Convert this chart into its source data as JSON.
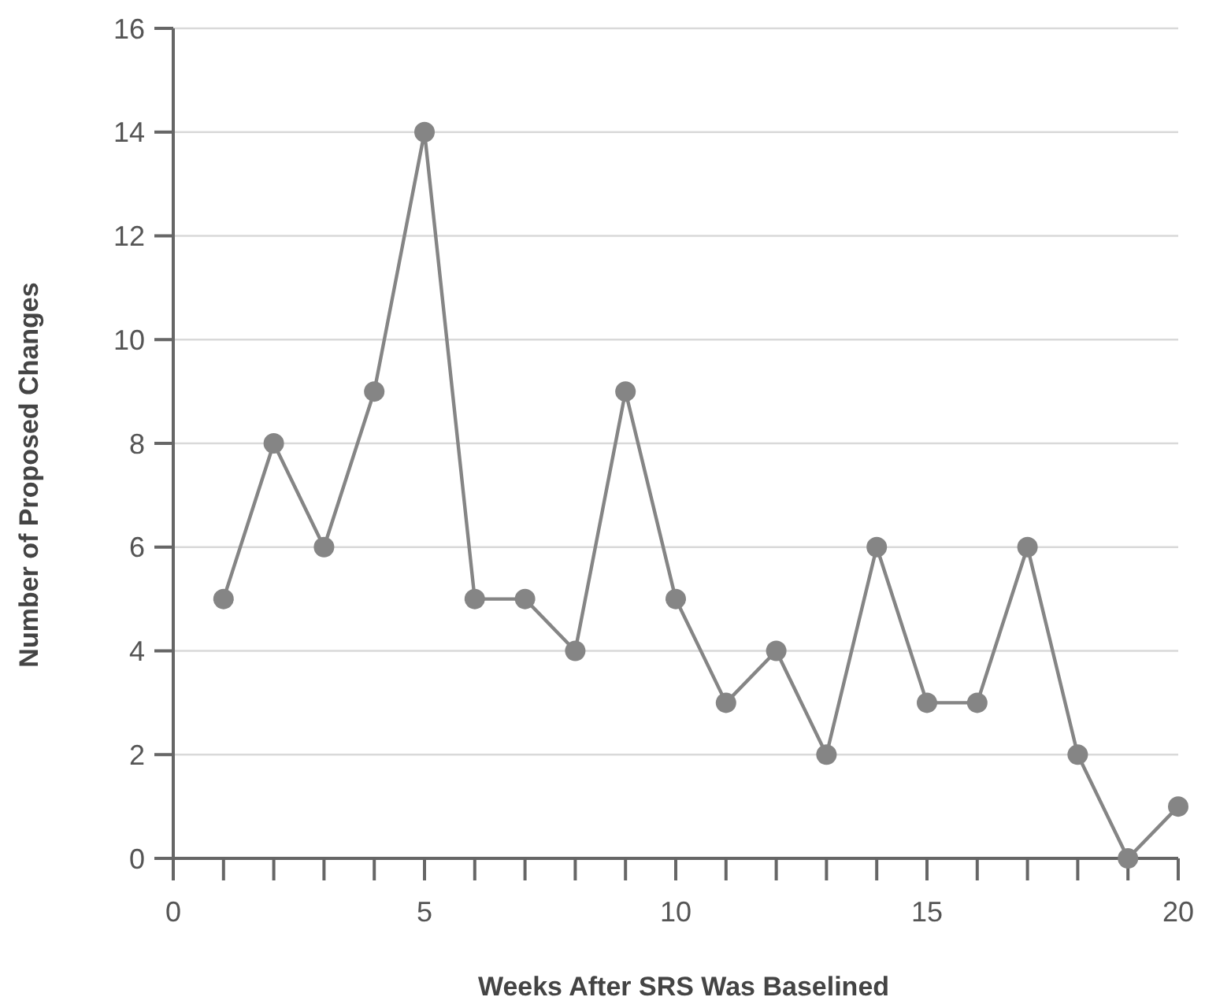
{
  "chart_data": {
    "type": "line",
    "xlabel": "Weeks After SRS Was Baselined",
    "ylabel": "Number of Proposed Changes",
    "x": [
      1,
      2,
      3,
      4,
      5,
      6,
      7,
      8,
      9,
      10,
      11,
      12,
      13,
      14,
      15,
      16,
      17,
      18,
      19,
      20
    ],
    "series": [
      {
        "color": "#858585",
        "values": [
          5,
          8,
          6,
          9,
          14,
          5,
          5,
          4,
          9,
          5,
          3,
          4,
          2,
          6,
          3,
          3,
          6,
          2,
          0,
          1
        ]
      }
    ],
    "xlim": [
      0,
      20
    ],
    "xticks": [
      0,
      {
        "value": 1,
        "label": null
      },
      {
        "value": 2,
        "label": null
      },
      {
        "value": 3,
        "label": null
      },
      {
        "value": 4,
        "label": null
      },
      5,
      {
        "value": 6,
        "label": null
      },
      {
        "value": 7,
        "label": null
      },
      {
        "value": 8,
        "label": null
      },
      {
        "value": 9,
        "label": null
      },
      10,
      {
        "value": 11,
        "label": null
      },
      {
        "value": 12,
        "label": null
      },
      {
        "value": 13,
        "label": null
      },
      {
        "value": 14,
        "label": null
      },
      15,
      {
        "value": 16,
        "label": null
      },
      {
        "value": 17,
        "label": null
      },
      {
        "value": 18,
        "label": null
      },
      {
        "value": 19,
        "label": null
      },
      20
    ],
    "ylim": [
      0,
      16
    ],
    "yticks": [
      0,
      2,
      4,
      6,
      8,
      10,
      12,
      14,
      16
    ],
    "grid": "y",
    "marker": "circle",
    "line_style": "solid"
  }
}
